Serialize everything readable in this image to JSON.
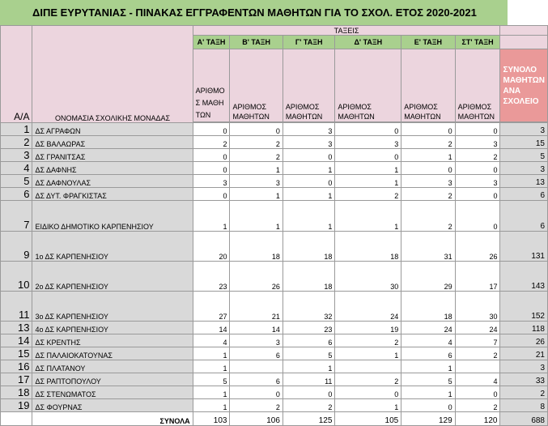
{
  "title": "ΔΙΠΕ ΕΥΡΥΤΑΝΙΑΣ - ΠΙΝΑΚΑΣ ΕΓΓΡΑΦΕΝΤΩΝ ΜΑΘΗΤΩΝ ΓΙΑ ΤΟ ΣΧΟΛ. ΕΤΟΣ 2020-2021",
  "headers": {
    "aa": "Α/Α",
    "school_name": "ΟΝΟΜΑΣΙΑ ΣΧΟΛΙΚΗΣ ΜΟΝΑΔΑΣ",
    "classes_group": "ΤΑΞΕΙΣ",
    "classes": [
      "Α' ΤΑΞΗ",
      "Β' ΤΑΞΗ",
      "Γ' ΤΑΞΗ",
      "Δ' ΤΑΞΗ",
      "Ε' ΤΑΞΗ",
      "ΣΤ' ΤΑΞΗ"
    ],
    "students_first": "ΑΡΙΘΜΟΣ ΜΑΘΗΤΩΝ",
    "students": "ΑΡΙΘΜΟΣ ΜΑΘΗΤΩΝ",
    "total_per_school": "ΣΥΝΟΛΟ ΜΑΘΗΤΩΝ ΑΝΑ ΣΧΟΛΕΙΟ"
  },
  "rows": [
    {
      "aa": "1",
      "name": "ΔΣ ΑΓΡΑΦΩΝ",
      "v": [
        "0",
        "0",
        "3",
        "0",
        "0",
        "0"
      ],
      "total": "3"
    },
    {
      "aa": "2",
      "name": "ΔΣ ΒΑΛΑΩΡΑΣ",
      "v": [
        "2",
        "2",
        "3",
        "3",
        "2",
        "3"
      ],
      "total": "15"
    },
    {
      "aa": "3",
      "name": "ΔΣ ΓΡΑΝΙΤΣΑΣ",
      "v": [
        "0",
        "2",
        "0",
        "0",
        "1",
        "2"
      ],
      "total": "5"
    },
    {
      "aa": "4",
      "name": "ΔΣ ΔΑΦΝΗΣ",
      "v": [
        "0",
        "1",
        "1",
        "1",
        "0",
        "0"
      ],
      "total": "3"
    },
    {
      "aa": "5",
      "name": "ΔΣ ΔΑΦΝΟΥΛΑΣ",
      "v": [
        "3",
        "3",
        "0",
        "1",
        "3",
        "3"
      ],
      "total": "13"
    },
    {
      "aa": "6",
      "name": "ΔΣ ΔΥΤ. ΦΡΑΓΚΙΣΤΑΣ",
      "v": [
        "0",
        "1",
        "1",
        "2",
        "2",
        "0"
      ],
      "total": "6"
    },
    {
      "aa": "7",
      "name": "ΕΙΔΙΚΟ ΔΗΜΟΤΙΚΟ ΚΑΡΠΕΝΗΣΙΟΥ",
      "v": [
        "1",
        "1",
        "1",
        "1",
        "2",
        "0"
      ],
      "total": "6"
    },
    {
      "aa": "9",
      "name": "1ο ΔΣ ΚΑΡΠΕΝΗΣΙΟΥ",
      "v": [
        "20",
        "18",
        "18",
        "18",
        "31",
        "26"
      ],
      "total": "131"
    },
    {
      "aa": "10",
      "name": "2ο ΔΣ ΚΑΡΠΕΝΗΣΙΟΥ",
      "v": [
        "23",
        "26",
        "18",
        "30",
        "29",
        "17"
      ],
      "total": "143"
    },
    {
      "aa": "11",
      "name": "3ο ΔΣ ΚΑΡΠΕΝΗΣΙΟΥ",
      "v": [
        "27",
        "21",
        "32",
        "24",
        "18",
        "30"
      ],
      "total": "152"
    },
    {
      "aa": "13",
      "name": "4ο ΔΣ ΚΑΡΠΕΝΗΣΙΟΥ",
      "v": [
        "14",
        "14",
        "23",
        "19",
        "24",
        "24"
      ],
      "total": "118"
    },
    {
      "aa": "14",
      "name": "ΔΣ ΚΡΕΝΤΗΣ",
      "v": [
        "4",
        "3",
        "6",
        "2",
        "4",
        "7"
      ],
      "total": "26"
    },
    {
      "aa": "15",
      "name": "ΔΣ ΠΑΛΑΙΟΚΑΤΟΥΝΑΣ",
      "v": [
        "1",
        "6",
        "5",
        "1",
        "6",
        "2"
      ],
      "total": "21"
    },
    {
      "aa": "16",
      "name": "ΔΣ ΠΛΑΤΑΝΟΥ",
      "v": [
        "1",
        "",
        "1",
        "",
        "1",
        ""
      ],
      "total": "3"
    },
    {
      "aa": "17",
      "name": "ΔΣ ΡΑΠΤΟΠΟΥΛΟΥ",
      "v": [
        "5",
        "6",
        "11",
        "2",
        "5",
        "4"
      ],
      "total": "33"
    },
    {
      "aa": "18",
      "name": "ΔΣ ΣΤΕΝΩΜΑΤΟΣ",
      "v": [
        "1",
        "0",
        "0",
        "0",
        "1",
        "0"
      ],
      "total": "2"
    },
    {
      "aa": "19",
      "name": "ΔΣ ΦΟΥΡΝΑΣ",
      "v": [
        "1",
        "2",
        "2",
        "1",
        "0",
        "2"
      ],
      "total": "8"
    }
  ],
  "footer": {
    "label": "ΣΥΝΟΛΑ",
    "totals": [
      "103",
      "106",
      "125",
      "105",
      "129",
      "120"
    ],
    "grand_total": "688"
  }
}
